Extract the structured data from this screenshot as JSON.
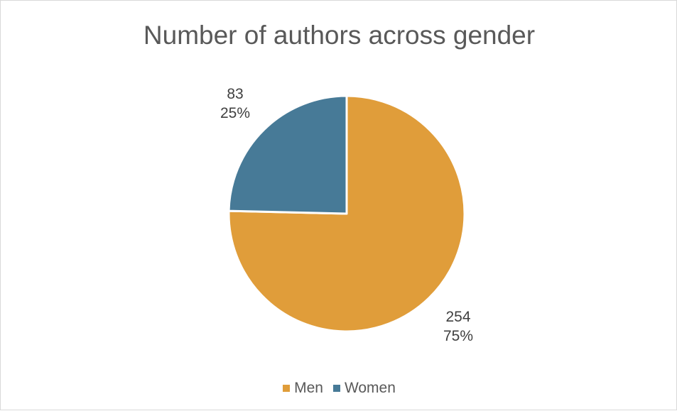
{
  "chart_data": {
    "type": "pie",
    "title": "Number of authors across gender",
    "categories": [
      "Men",
      "Women"
    ],
    "values": [
      254,
      83
    ],
    "percent_labels": [
      "75%",
      "25%"
    ],
    "colors": {
      "Men": "#E09D3A",
      "Women": "#477A97"
    },
    "legend_position": "bottom",
    "start_angle_deg": 0,
    "direction": "clockwise"
  }
}
